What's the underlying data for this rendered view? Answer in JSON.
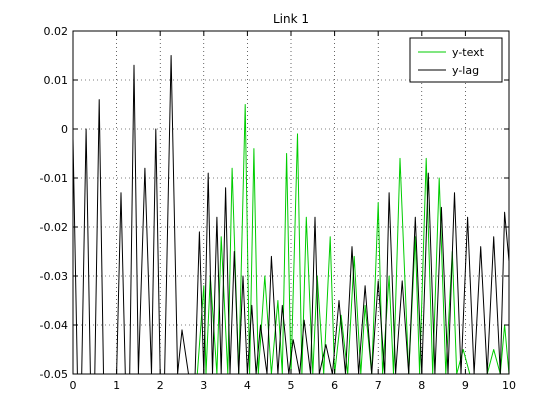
{
  "chart_data": {
    "type": "line",
    "title": "Link 1",
    "xlabel": "",
    "ylabel": "",
    "xlim": [
      0,
      10
    ],
    "ylim": [
      -0.05,
      0.02
    ],
    "grid": true,
    "legend_position": "top-right",
    "x_ticks": [
      0,
      1,
      2,
      3,
      4,
      5,
      6,
      7,
      8,
      9,
      10
    ],
    "y_ticks": [
      0.02,
      0.01,
      0,
      -0.01,
      -0.02,
      -0.03,
      -0.04,
      -0.05
    ],
    "x_tick_labels": [
      "0",
      "1",
      "2",
      "3",
      "4",
      "5",
      "6",
      "7",
      "8",
      "9",
      "10"
    ],
    "y_tick_labels": [
      "0.02",
      "0.01",
      "0",
      "-0.01",
      "-0.02",
      "-0.03",
      "-0.04",
      "-0.05"
    ],
    "series": [
      {
        "name": "y-text",
        "color": "#00cc00",
        "x": [
          0,
          0.1,
          0.2,
          0.35,
          0.45,
          0.6,
          0.85,
          1.0,
          1.1,
          1.3,
          1.4,
          1.6,
          1.7,
          1.9,
          2.0,
          2.2,
          2.3,
          2.45,
          2.6,
          2.75,
          2.85,
          3.0,
          3.05,
          3.15,
          3.3,
          3.4,
          3.55,
          3.65,
          3.8,
          3.95,
          4.05,
          4.15,
          4.25,
          4.4,
          4.55,
          4.7,
          4.8,
          4.9,
          5.0,
          5.15,
          5.25,
          5.35,
          5.5,
          5.6,
          5.75,
          5.9,
          6.0,
          6.15,
          6.3,
          6.45,
          6.6,
          6.7,
          6.85,
          7.0,
          7.1,
          7.25,
          7.35,
          7.5,
          7.7,
          7.85,
          7.95,
          8.1,
          8.25,
          8.4,
          8.55,
          8.7,
          8.8,
          8.95,
          9.1,
          9.3,
          9.5,
          9.65,
          9.8,
          9.9,
          10.0
        ],
        "values": [
          -0.05,
          -0.05,
          -0.05,
          -0.05,
          -0.05,
          -0.05,
          -0.05,
          -0.05,
          -0.05,
          -0.05,
          -0.05,
          -0.05,
          -0.05,
          -0.05,
          -0.05,
          -0.05,
          -0.05,
          -0.05,
          -0.05,
          -0.05,
          -0.05,
          -0.032,
          -0.05,
          -0.03,
          -0.05,
          -0.022,
          -0.05,
          -0.008,
          -0.05,
          0.005,
          -0.05,
          -0.004,
          -0.05,
          -0.03,
          -0.05,
          -0.035,
          -0.05,
          -0.005,
          -0.05,
          -0.001,
          -0.05,
          -0.018,
          -0.05,
          -0.03,
          -0.05,
          -0.022,
          -0.05,
          -0.038,
          -0.05,
          -0.026,
          -0.05,
          -0.036,
          -0.05,
          -0.015,
          -0.05,
          -0.03,
          -0.05,
          -0.006,
          -0.05,
          -0.022,
          -0.05,
          -0.006,
          -0.05,
          -0.01,
          -0.05,
          -0.025,
          -0.05,
          -0.045,
          -0.05,
          -0.05,
          -0.05,
          -0.045,
          -0.05,
          -0.04,
          -0.05
        ]
      },
      {
        "name": "y-lag",
        "color": "#000000",
        "x": [
          0,
          0.1,
          0.2,
          0.3,
          0.4,
          0.5,
          0.6,
          0.7,
          0.85,
          1.0,
          1.1,
          1.2,
          1.3,
          1.4,
          1.5,
          1.65,
          1.8,
          1.9,
          2.0,
          2.1,
          2.25,
          2.4,
          2.5,
          2.65,
          2.8,
          2.9,
          3.0,
          3.1,
          3.2,
          3.3,
          3.4,
          3.5,
          3.6,
          3.7,
          3.8,
          3.9,
          4.0,
          4.1,
          4.2,
          4.3,
          4.45,
          4.55,
          4.7,
          4.8,
          4.95,
          5.05,
          5.2,
          5.3,
          5.45,
          5.55,
          5.65,
          5.8,
          5.95,
          6.1,
          6.25,
          6.4,
          6.55,
          6.7,
          6.85,
          7.0,
          7.15,
          7.25,
          7.4,
          7.55,
          7.7,
          7.85,
          8.0,
          8.15,
          8.3,
          8.45,
          8.6,
          8.75,
          8.9,
          9.05,
          9.2,
          9.35,
          9.5,
          9.65,
          9.8,
          9.9,
          10.0
        ],
        "values": [
          -0.002,
          -0.05,
          -0.05,
          0.0,
          -0.05,
          -0.05,
          0.006,
          -0.05,
          -0.05,
          -0.05,
          -0.013,
          -0.05,
          -0.05,
          0.013,
          -0.05,
          -0.008,
          -0.05,
          0.0,
          -0.05,
          -0.05,
          0.015,
          -0.05,
          -0.041,
          -0.05,
          -0.05,
          -0.021,
          -0.05,
          -0.009,
          -0.05,
          -0.018,
          -0.05,
          -0.012,
          -0.05,
          -0.025,
          -0.05,
          -0.03,
          -0.05,
          -0.036,
          -0.05,
          -0.04,
          -0.05,
          -0.026,
          -0.05,
          -0.036,
          -0.05,
          -0.043,
          -0.05,
          -0.039,
          -0.05,
          -0.018,
          -0.05,
          -0.044,
          -0.05,
          -0.035,
          -0.05,
          -0.024,
          -0.05,
          -0.032,
          -0.05,
          -0.031,
          -0.05,
          -0.013,
          -0.05,
          -0.031,
          -0.05,
          -0.018,
          -0.05,
          -0.009,
          -0.05,
          -0.016,
          -0.05,
          -0.013,
          -0.05,
          -0.018,
          -0.05,
          -0.024,
          -0.05,
          -0.022,
          -0.05,
          -0.017,
          -0.027
        ]
      }
    ]
  }
}
